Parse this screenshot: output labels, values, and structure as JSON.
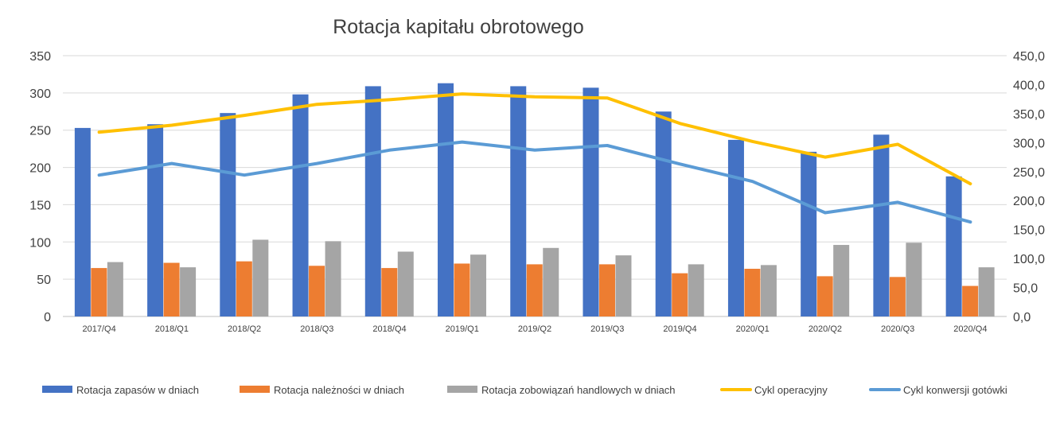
{
  "chart_data": {
    "type": "bar",
    "title": "Rotacja kapitału obrotowego",
    "categories": [
      "2017/Q4",
      "2018/Q1",
      "2018/Q2",
      "2018/Q3",
      "2018/Q4",
      "2019/Q1",
      "2019/Q2",
      "2019/Q3",
      "2019/Q4",
      "2020/Q1",
      "2020/Q2",
      "2020/Q3",
      "2020/Q4"
    ],
    "y_left": {
      "ylim": [
        0,
        350
      ],
      "ticks": [
        "0",
        "50",
        "100",
        "150",
        "200",
        "250",
        "300",
        "350"
      ]
    },
    "y_right": {
      "ylim": [
        0,
        450
      ],
      "ticks": [
        "0,0",
        "50,0",
        "100,0",
        "150,0",
        "200,0",
        "250,0",
        "300,0",
        "350,0",
        "400,0",
        "450,0"
      ]
    },
    "grid": true,
    "legend_position": "bottom",
    "series": [
      {
        "name": "Rotacja zapasów w dniach",
        "type": "bar",
        "axis": "left",
        "color": "#4472C4",
        "values": [
          253,
          258,
          273,
          298,
          309,
          313,
          309,
          307,
          275,
          237,
          221,
          244,
          188
        ]
      },
      {
        "name": "Rotacja należności w dniach",
        "type": "bar",
        "axis": "left",
        "color": "#ED7D31",
        "values": [
          65,
          72,
          74,
          68,
          65,
          71,
          70,
          70,
          58,
          64,
          54,
          53,
          41
        ]
      },
      {
        "name": "Rotacja zobowiązań handlowych w dniach",
        "type": "bar",
        "axis": "left",
        "color": "#A5A5A5",
        "values": [
          73,
          66,
          103,
          101,
          87,
          83,
          92,
          82,
          70,
          69,
          96,
          99,
          66
        ]
      },
      {
        "name": "Cykl operacyjny",
        "type": "line",
        "axis": "right",
        "color": "#FFC000",
        "values": [
          318,
          330,
          347,
          366,
          374,
          384,
          379,
          377,
          333,
          302,
          275,
          297,
          229
        ]
      },
      {
        "name": "Cykl konwersji gotówki",
        "type": "line",
        "axis": "right",
        "color": "#5B9BD5",
        "values": [
          244,
          264,
          244,
          264,
          287,
          301,
          287,
          295,
          263,
          233,
          179,
          197,
          163
        ]
      }
    ]
  }
}
